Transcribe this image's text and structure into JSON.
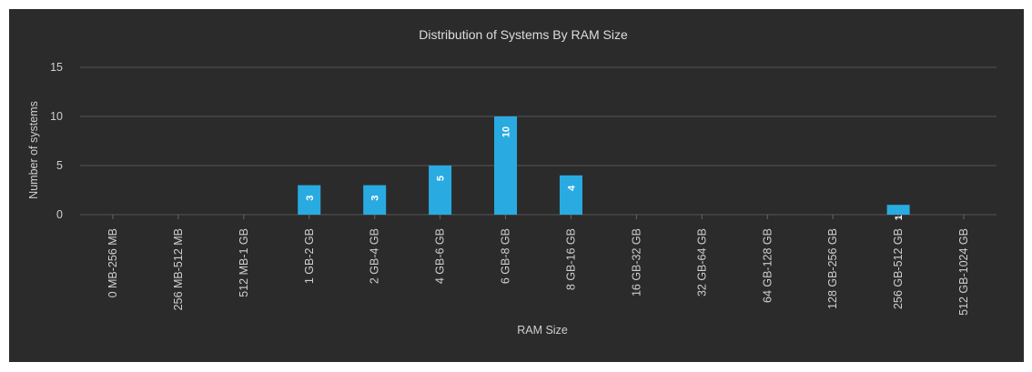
{
  "chart_data": {
    "type": "bar",
    "title": "Distribution of Systems By RAM Size",
    "xlabel": "RAM Size",
    "ylabel": "Number of systems",
    "categories": [
      "0 MB-256 MB",
      "256 MB-512 MB",
      "512 MB-1 GB",
      "1 GB-2 GB",
      "2 GB-4 GB",
      "4 GB-6 GB",
      "6 GB-8 GB",
      "8 GB-16 GB",
      "16 GB-32 GB",
      "32 GB-64 GB",
      "64 GB-128 GB",
      "128 GB-256 GB",
      "256 GB-512 GB",
      "512 GB-1024 GB"
    ],
    "values": [
      0,
      0,
      0,
      3,
      3,
      5,
      10,
      4,
      0,
      0,
      0,
      0,
      1,
      0
    ],
    "yticks": [
      0,
      5,
      10,
      15
    ],
    "ylim": [
      0,
      15
    ],
    "grid": true,
    "legend": "none",
    "bar_color": "#29abe2",
    "background_color": "#2b2b2b"
  }
}
